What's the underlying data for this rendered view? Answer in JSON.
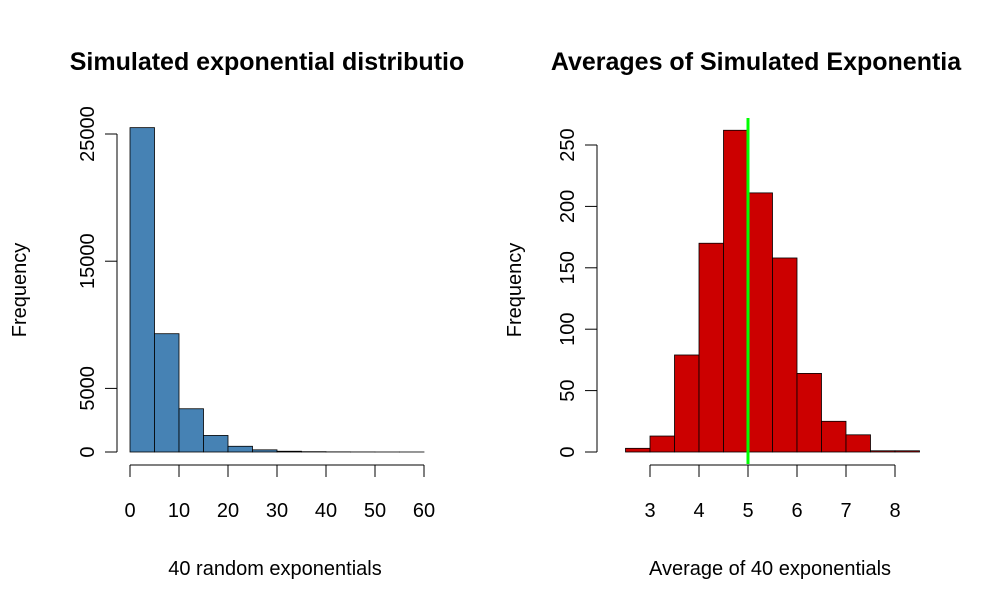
{
  "chart_data": [
    {
      "type": "bar",
      "title": "Simulated exponential distributio",
      "xlabel": "40 random exponentials",
      "ylabel": "Frequency",
      "bin_edges": [
        0,
        5,
        10,
        15,
        20,
        25,
        30,
        35,
        40,
        45,
        50,
        55,
        60
      ],
      "values": [
        25500,
        9300,
        3400,
        1300,
        450,
        170,
        60,
        25,
        10,
        5,
        2,
        1
      ],
      "xlim": [
        0,
        60
      ],
      "ylim": [
        0,
        25000
      ],
      "xticks": [
        "0",
        "10",
        "20",
        "30",
        "40",
        "50",
        "60"
      ],
      "yticks": [
        "0",
        "5000",
        "15000",
        "25000"
      ],
      "bar_color": "#4682B4",
      "grid": false
    },
    {
      "type": "bar",
      "title": "Averages of Simulated Exponentia",
      "xlabel": "Average of 40 exponentials",
      "ylabel": "Frequency",
      "bin_edges": [
        2.5,
        3,
        3.5,
        4,
        4.5,
        5,
        5.5,
        6,
        6.5,
        7,
        7.5,
        8,
        8.5
      ],
      "values": [
        3,
        13,
        79,
        170,
        262,
        211,
        158,
        64,
        25,
        14,
        1,
        1
      ],
      "xlim": [
        3,
        8
      ],
      "ylim": [
        0,
        250
      ],
      "xticks": [
        "3",
        "4",
        "5",
        "6",
        "7",
        "8"
      ],
      "yticks": [
        "0",
        "50",
        "100",
        "150",
        "200",
        "250"
      ],
      "bar_color": "#CC0000",
      "mean_line": 5,
      "mean_line_color": "#00FF00",
      "grid": false
    }
  ]
}
